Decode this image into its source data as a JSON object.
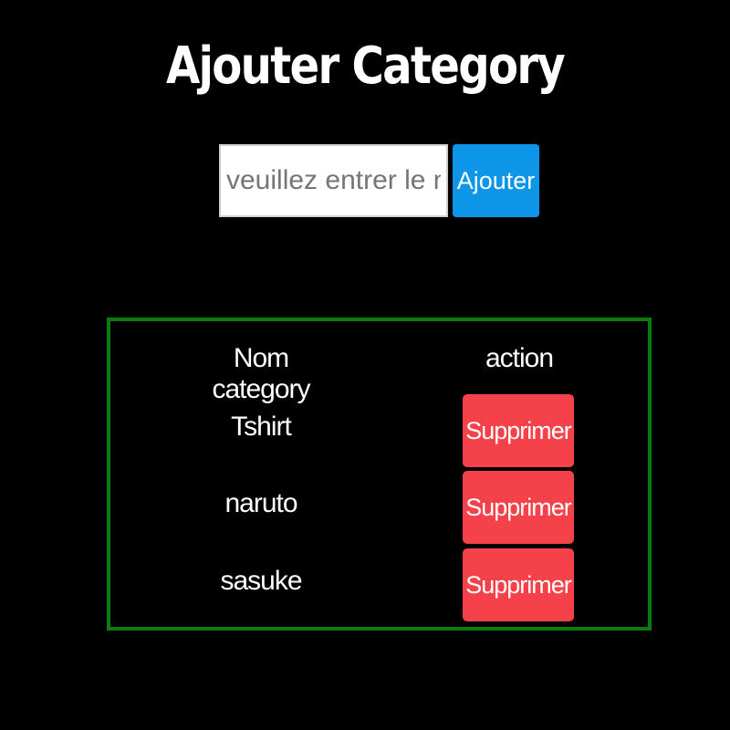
{
  "page": {
    "title": "Ajouter Category"
  },
  "form": {
    "input_placeholder": "veuillez entrer le nom du c",
    "input_value": "",
    "add_label": "Ajouter"
  },
  "table": {
    "headers": {
      "name": "Nom category",
      "action": "action"
    },
    "rows": [
      {
        "name": "Tshirt",
        "delete_label": "Supprimer"
      },
      {
        "name": "naruto",
        "delete_label": "Supprimer"
      },
      {
        "name": "sasuke",
        "delete_label": "Supprimer"
      }
    ]
  },
  "colors": {
    "background": "#000000",
    "add_button": "#0d96e8",
    "delete_button": "#f5424a",
    "table_border": "#0d7a0d"
  }
}
